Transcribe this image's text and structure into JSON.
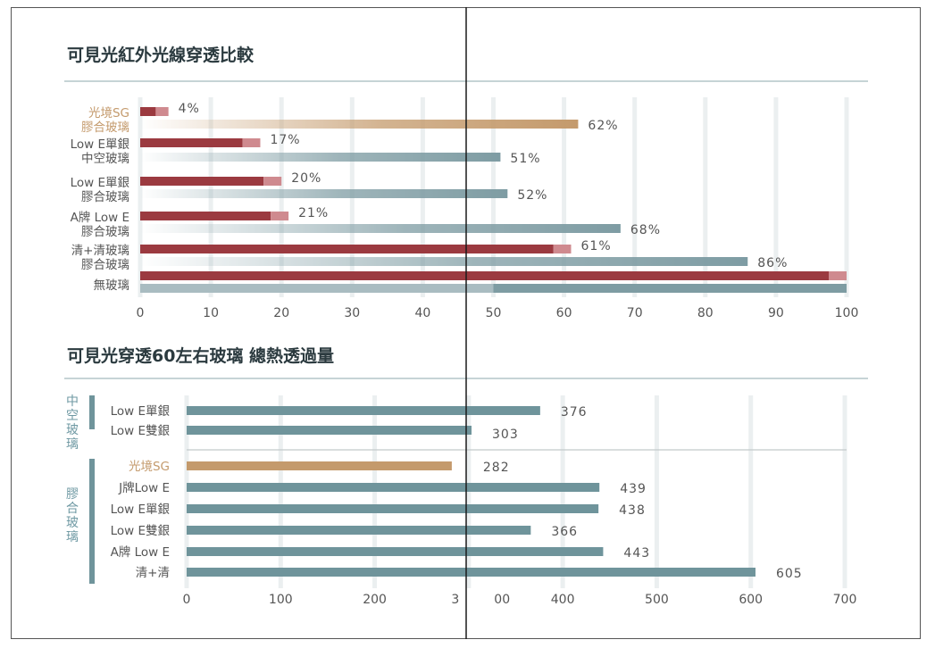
{
  "chart_data": [
    {
      "type": "bar",
      "title": "可見光紅外光線穿透比較",
      "categories": [
        [
          "光境SG",
          "膠合玻璃"
        ],
        [
          "Low E單銀",
          "中空玻璃"
        ],
        [
          "Low E單銀",
          "膠合玻璃"
        ],
        [
          "A牌 Low E",
          "膠合玻璃"
        ],
        [
          "清+清玻璃",
          "膠合玻璃"
        ],
        [
          "無玻璃"
        ]
      ],
      "series": [
        {
          "values": [
            4,
            17,
            20,
            21,
            61,
            100
          ],
          "labels": [
            "4%",
            "17%",
            "20%",
            "21%",
            "61%",
            ""
          ],
          "color": "#9b3a40"
        },
        {
          "values": [
            62,
            51,
            52,
            68,
            86,
            100
          ],
          "labels": [
            "62%",
            "51%",
            "52%",
            "68%",
            "86%",
            ""
          ],
          "color": "#7e9ca3"
        }
      ],
      "xlim": [
        0,
        100
      ],
      "xticks": [
        "0",
        "10",
        "20",
        "30",
        "40",
        "50",
        "60",
        "70",
        "80",
        "90",
        "100"
      ],
      "highlight_color": "#c49a6c",
      "grid": true
    },
    {
      "type": "bar",
      "title": "可見光穿透60左右玻璃 總熱透過量",
      "groups": [
        {
          "name": "中空玻璃",
          "categories": [
            "Low E單銀",
            "Low E雙銀"
          ],
          "values": [
            376,
            303
          ]
        },
        {
          "name": "膠合玻璃",
          "categories": [
            "光境SG",
            "J牌Low E",
            "Low E單銀",
            "Low E雙銀",
            "A牌 Low E",
            "清+清"
          ],
          "values": [
            282,
            439,
            438,
            366,
            443,
            605
          ]
        }
      ],
      "xlim": [
        0,
        700
      ],
      "xticks": [
        "0",
        "100",
        "200",
        "3",
        "00",
        "400",
        "500",
        "600",
        "700"
      ],
      "bar_color": "#6f949b",
      "highlight_color": "#c49a6c",
      "grid": true
    }
  ]
}
